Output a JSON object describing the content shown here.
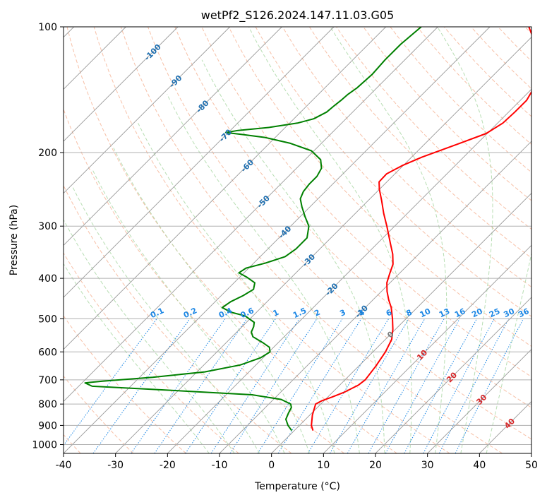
{
  "chart_data": {
    "type": "line",
    "title": "wetPf2_S126.2024.147.11.03.G05",
    "xlabel": "Temperature (°C)",
    "ylabel": "Pressure (hPa)",
    "xlim": [
      -40,
      50
    ],
    "ylim": [
      1050,
      100
    ],
    "y_scale": "log",
    "x_ticks": [
      -40,
      -30,
      -20,
      -10,
      0,
      10,
      20,
      30,
      40,
      50
    ],
    "y_ticks": [
      100,
      200,
      300,
      400,
      500,
      600,
      700,
      800,
      900,
      1000
    ],
    "grid": true,
    "skew_t": true,
    "colors": {
      "temperature": "#ff0000",
      "dewpoint": "#008000",
      "dry_adiabat": "#f4a582",
      "moist_adiabat": "#a6d6a0",
      "mixing_ratio": "#1e88e5",
      "isotherm": "#999999",
      "isotherm_label": "#1f6fb0",
      "positive_isotherm_label": "#d62728"
    },
    "series": [
      {
        "kind": "temperature",
        "points": [
          [
            926,
            3.6
          ],
          [
            900,
            2.3
          ],
          [
            850,
            0.5
          ],
          [
            800,
            -1.0
          ],
          [
            785,
            -0.4
          ],
          [
            770,
            0.8
          ],
          [
            750,
            2.2
          ],
          [
            720,
            3.6
          ],
          [
            700,
            3.9
          ],
          [
            650,
            3.3
          ],
          [
            600,
            2.4
          ],
          [
            560,
            1.2
          ],
          [
            530,
            -0.5
          ],
          [
            500,
            -2.6
          ],
          [
            470,
            -5.0
          ],
          [
            450,
            -7.0
          ],
          [
            430,
            -8.9
          ],
          [
            410,
            -10.6
          ],
          [
            390,
            -11.8
          ],
          [
            370,
            -13.0
          ],
          [
            350,
            -15.0
          ],
          [
            330,
            -17.5
          ],
          [
            300,
            -21.5
          ],
          [
            280,
            -24.5
          ],
          [
            260,
            -27.5
          ],
          [
            245,
            -30.0
          ],
          [
            235,
            -31.5
          ],
          [
            225,
            -31.6
          ],
          [
            215,
            -30.2
          ],
          [
            205,
            -28.0
          ],
          [
            190,
            -23.4
          ],
          [
            180,
            -20.2
          ],
          [
            170,
            -19.0
          ],
          [
            160,
            -18.8
          ],
          [
            150,
            -18.8
          ],
          [
            140,
            -19.8
          ],
          [
            130,
            -21.1
          ],
          [
            120,
            -24.3
          ],
          [
            110,
            -27.9
          ],
          [
            100,
            -32.5
          ]
        ]
      },
      {
        "kind": "dewpoint",
        "points": [
          [
            926,
            -0.5
          ],
          [
            900,
            -2.2
          ],
          [
            870,
            -3.8
          ],
          [
            840,
            -4.5
          ],
          [
            815,
            -5.0
          ],
          [
            800,
            -5.8
          ],
          [
            780,
            -8.5
          ],
          [
            760,
            -15.0
          ],
          [
            740,
            -33.0
          ],
          [
            725,
            -47.4
          ],
          [
            712,
            -49.4
          ],
          [
            705,
            -46.4
          ],
          [
            690,
            -37.5
          ],
          [
            670,
            -28.5
          ],
          [
            645,
            -23.0
          ],
          [
            620,
            -20.5
          ],
          [
            600,
            -19.8
          ],
          [
            585,
            -20.8
          ],
          [
            570,
            -23.0
          ],
          [
            552,
            -26.0
          ],
          [
            538,
            -27.2
          ],
          [
            522,
            -27.8
          ],
          [
            510,
            -28.5
          ],
          [
            492,
            -31.5
          ],
          [
            482,
            -35.0
          ],
          [
            470,
            -37.5
          ],
          [
            455,
            -37.0
          ],
          [
            440,
            -35.8
          ],
          [
            425,
            -35.0
          ],
          [
            410,
            -36.0
          ],
          [
            398,
            -38.5
          ],
          [
            388,
            -41.0
          ],
          [
            378,
            -40.5
          ],
          [
            368,
            -37.8
          ],
          [
            355,
            -35.2
          ],
          [
            340,
            -34.6
          ],
          [
            320,
            -34.6
          ],
          [
            300,
            -36.5
          ],
          [
            285,
            -39.0
          ],
          [
            270,
            -41.5
          ],
          [
            258,
            -43.4
          ],
          [
            248,
            -44.2
          ],
          [
            238,
            -44.5
          ],
          [
            228,
            -44.5
          ],
          [
            218,
            -45.2
          ],
          [
            208,
            -47.0
          ],
          [
            198,
            -50.5
          ],
          [
            190,
            -56.0
          ],
          [
            184,
            -62.0
          ],
          [
            181,
            -67.0
          ],
          [
            179,
            -70.5
          ],
          [
            177,
            -68.5
          ],
          [
            174,
            -63.0
          ],
          [
            170,
            -58.5
          ],
          [
            166,
            -56.2
          ],
          [
            160,
            -55.0
          ],
          [
            155,
            -54.8
          ],
          [
            150,
            -54.5
          ],
          [
            145,
            -54.3
          ],
          [
            140,
            -53.8
          ],
          [
            130,
            -53.5
          ],
          [
            120,
            -53.8
          ],
          [
            110,
            -53.8
          ],
          [
            100,
            -53.2
          ]
        ]
      }
    ],
    "isotherm_labels": [
      "-100",
      "-90",
      "-80",
      "-70",
      "-60",
      "-50",
      "-40",
      "-30",
      "-20",
      "-10",
      "0",
      "10",
      "20",
      "30",
      "40"
    ],
    "mixing_ratio_labels": [
      "0.1",
      "0.2",
      "0.4",
      "0.6",
      "1",
      "1.5",
      "2",
      "3",
      "4",
      "6",
      "8",
      "10",
      "13",
      "16",
      "20",
      "25",
      "30",
      "36"
    ]
  }
}
